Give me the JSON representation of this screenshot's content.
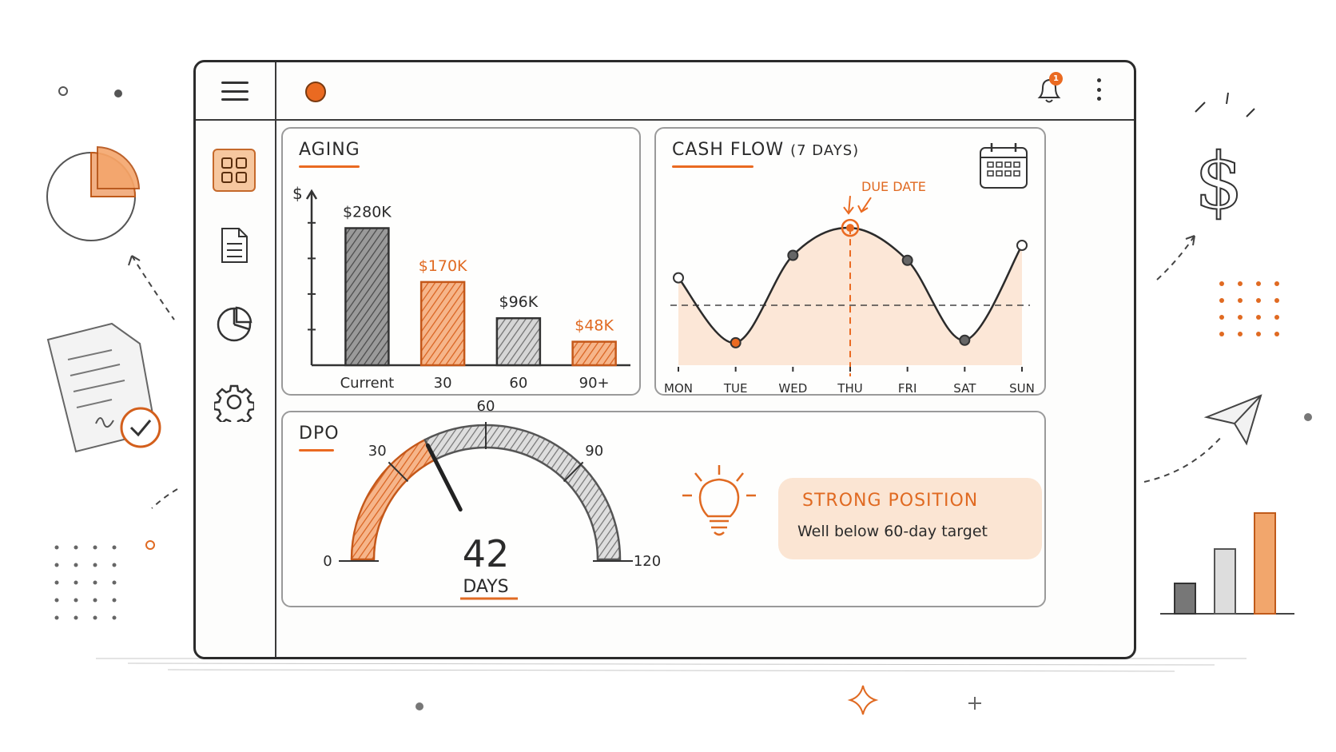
{
  "topbar": {
    "notification_count": "1"
  },
  "sidebar": {
    "items": [
      {
        "name": "dashboard",
        "active": true
      },
      {
        "name": "documents",
        "active": false
      },
      {
        "name": "reports",
        "active": false
      },
      {
        "name": "settings",
        "active": false
      }
    ]
  },
  "aging": {
    "title": "AGING",
    "y_axis_symbol": "$"
  },
  "cash_flow": {
    "title": "CASH FLOW",
    "subtitle": "(7 DAYS)",
    "annotation": "DUE DATE"
  },
  "dpo": {
    "title": "DPO",
    "value": "42",
    "unit": "DAYS",
    "insight_title": "STRONG POSITION",
    "insight_subtitle": "Well below 60-day target"
  },
  "colors": {
    "accent": "#ea6a21",
    "dark": "#2b2b2b",
    "gray": "#9a9a9a"
  },
  "chart_data": [
    {
      "type": "bar",
      "title": "AGING",
      "ylabel": "$",
      "categories": [
        "Current",
        "30",
        "60",
        "90+"
      ],
      "values": [
        280000,
        170000,
        96000,
        48000
      ],
      "data_labels": [
        "$280K",
        "$170K",
        "$96K",
        "$48K"
      ],
      "highlight": [
        false,
        true,
        false,
        true
      ],
      "ylim": [
        0,
        320000
      ]
    },
    {
      "type": "line",
      "title": "CASH FLOW",
      "subtitle": "(7 DAYS)",
      "categories": [
        "MON",
        "TUE",
        "WED",
        "THU",
        "FRI",
        "SAT",
        "SUN"
      ],
      "values": [
        0.55,
        -0.75,
        1.0,
        1.55,
        0.9,
        -0.7,
        1.2
      ],
      "reference_line": 0,
      "highlight_index": 3,
      "annotation": "DUE DATE",
      "ylim": [
        -1.2,
        2.0
      ]
    },
    {
      "type": "gauge",
      "title": "DPO",
      "value": 42,
      "range": [
        0,
        120
      ],
      "ticks": [
        0,
        30,
        60,
        90,
        120
      ],
      "tick_labels": [
        "0",
        "30",
        "60",
        "90",
        "120"
      ],
      "unit": "DAYS"
    }
  ]
}
